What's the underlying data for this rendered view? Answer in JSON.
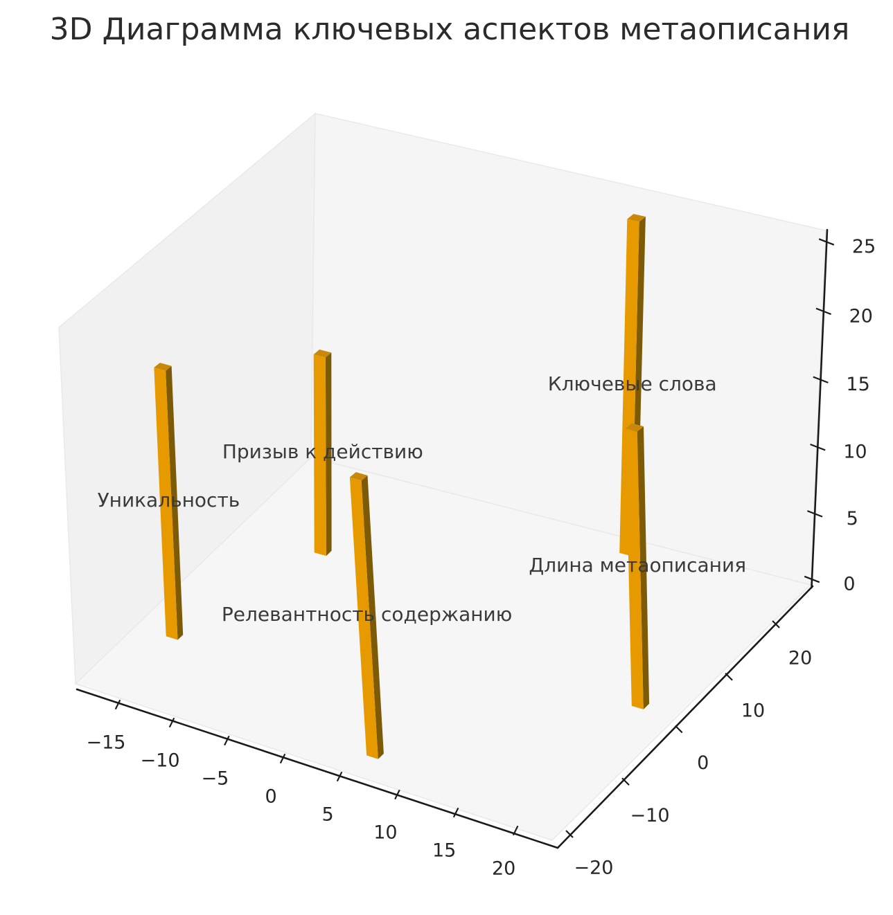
{
  "title": "3D Диаграмма ключевых аспектов метаописания",
  "chart_data": {
    "type": "bar",
    "subtype": "bar3d",
    "title": "3D Диаграмма ключевых аспектов метаописания",
    "bars": [
      {
        "label": "Уникальность",
        "x": -15,
        "y": -11,
        "dx": 1,
        "dy": 1,
        "z": 20
      },
      {
        "label": "Призыв к действию",
        "x": -11,
        "y": 8,
        "dx": 1,
        "dy": 1,
        "z": 15
      },
      {
        "label": "Релевантность содержанию",
        "x": 6,
        "y": -19,
        "dx": 1,
        "dy": 1,
        "z": 20
      },
      {
        "label": "Ключевые слова",
        "x": 9,
        "y": 20,
        "dx": 1,
        "dy": 1,
        "z": 25
      },
      {
        "label": "Длина метаописания",
        "x": 20,
        "y": -1,
        "dx": 1,
        "dy": 1,
        "z": 20
      }
    ],
    "x_ticks": [
      -15,
      -10,
      -5,
      0,
      5,
      10,
      15,
      20
    ],
    "y_ticks": [
      -20,
      -10,
      0,
      10,
      20
    ],
    "z_ticks": [
      0,
      5,
      10,
      15,
      20,
      25
    ],
    "xlabel": "",
    "ylabel": "",
    "zlabel": "",
    "grid": false,
    "legend": "none",
    "bar_color_name": "orange"
  },
  "colors": {
    "bar_front": "#e79a00",
    "bar_side": "#7d5a06",
    "bar_top": "#c8880a",
    "pane_left": "#f1f1f1",
    "pane_right": "#f5f5f5",
    "pane_floor": "#f6f6f6",
    "pane_edge": "#e9e9e9",
    "axis_line": "#1a1a1a",
    "tick_text": "#262626",
    "bar_label_text": "#3a3a3a",
    "title_text": "#2b2b2b",
    "background": "#ffffff"
  }
}
